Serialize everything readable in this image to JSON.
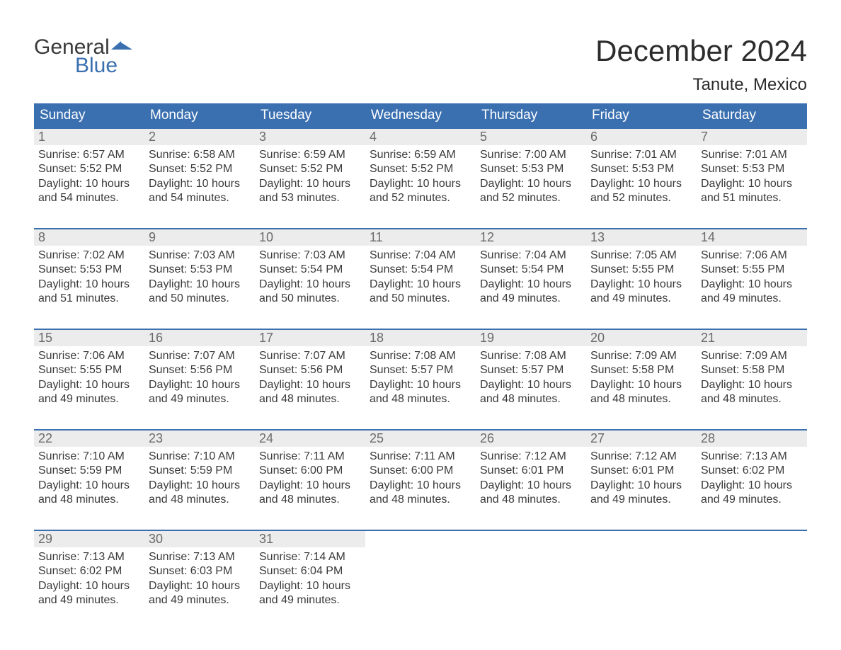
{
  "logo": {
    "text1": "General",
    "text2": "Blue",
    "flag_color": "#3a6fb0"
  },
  "title": "December 2024",
  "location": "Tanute, Mexico",
  "colors": {
    "header_bg": "#3a6fb0",
    "header_text": "#ffffff",
    "daynum_bg": "#ececec",
    "daynum_text": "#6a6a6a",
    "body_text": "#3a3a3a",
    "week_border": "#3a6fb0",
    "page_bg": "#ffffff"
  },
  "typography": {
    "title_fontsize": 42,
    "location_fontsize": 24,
    "header_fontsize": 19,
    "daynum_fontsize": 18,
    "body_fontsize": 16,
    "font_family": "Arial"
  },
  "layout": {
    "columns": 7,
    "rows": 5
  },
  "day_headers": [
    "Sunday",
    "Monday",
    "Tuesday",
    "Wednesday",
    "Thursday",
    "Friday",
    "Saturday"
  ],
  "weeks": [
    [
      {
        "n": "1",
        "sunrise": "Sunrise: 6:57 AM",
        "sunset": "Sunset: 5:52 PM",
        "d1": "Daylight: 10 hours",
        "d2": "and 54 minutes."
      },
      {
        "n": "2",
        "sunrise": "Sunrise: 6:58 AM",
        "sunset": "Sunset: 5:52 PM",
        "d1": "Daylight: 10 hours",
        "d2": "and 54 minutes."
      },
      {
        "n": "3",
        "sunrise": "Sunrise: 6:59 AM",
        "sunset": "Sunset: 5:52 PM",
        "d1": "Daylight: 10 hours",
        "d2": "and 53 minutes."
      },
      {
        "n": "4",
        "sunrise": "Sunrise: 6:59 AM",
        "sunset": "Sunset: 5:52 PM",
        "d1": "Daylight: 10 hours",
        "d2": "and 52 minutes."
      },
      {
        "n": "5",
        "sunrise": "Sunrise: 7:00 AM",
        "sunset": "Sunset: 5:53 PM",
        "d1": "Daylight: 10 hours",
        "d2": "and 52 minutes."
      },
      {
        "n": "6",
        "sunrise": "Sunrise: 7:01 AM",
        "sunset": "Sunset: 5:53 PM",
        "d1": "Daylight: 10 hours",
        "d2": "and 52 minutes."
      },
      {
        "n": "7",
        "sunrise": "Sunrise: 7:01 AM",
        "sunset": "Sunset: 5:53 PM",
        "d1": "Daylight: 10 hours",
        "d2": "and 51 minutes."
      }
    ],
    [
      {
        "n": "8",
        "sunrise": "Sunrise: 7:02 AM",
        "sunset": "Sunset: 5:53 PM",
        "d1": "Daylight: 10 hours",
        "d2": "and 51 minutes."
      },
      {
        "n": "9",
        "sunrise": "Sunrise: 7:03 AM",
        "sunset": "Sunset: 5:53 PM",
        "d1": "Daylight: 10 hours",
        "d2": "and 50 minutes."
      },
      {
        "n": "10",
        "sunrise": "Sunrise: 7:03 AM",
        "sunset": "Sunset: 5:54 PM",
        "d1": "Daylight: 10 hours",
        "d2": "and 50 minutes."
      },
      {
        "n": "11",
        "sunrise": "Sunrise: 7:04 AM",
        "sunset": "Sunset: 5:54 PM",
        "d1": "Daylight: 10 hours",
        "d2": "and 50 minutes."
      },
      {
        "n": "12",
        "sunrise": "Sunrise: 7:04 AM",
        "sunset": "Sunset: 5:54 PM",
        "d1": "Daylight: 10 hours",
        "d2": "and 49 minutes."
      },
      {
        "n": "13",
        "sunrise": "Sunrise: 7:05 AM",
        "sunset": "Sunset: 5:55 PM",
        "d1": "Daylight: 10 hours",
        "d2": "and 49 minutes."
      },
      {
        "n": "14",
        "sunrise": "Sunrise: 7:06 AM",
        "sunset": "Sunset: 5:55 PM",
        "d1": "Daylight: 10 hours",
        "d2": "and 49 minutes."
      }
    ],
    [
      {
        "n": "15",
        "sunrise": "Sunrise: 7:06 AM",
        "sunset": "Sunset: 5:55 PM",
        "d1": "Daylight: 10 hours",
        "d2": "and 49 minutes."
      },
      {
        "n": "16",
        "sunrise": "Sunrise: 7:07 AM",
        "sunset": "Sunset: 5:56 PM",
        "d1": "Daylight: 10 hours",
        "d2": "and 49 minutes."
      },
      {
        "n": "17",
        "sunrise": "Sunrise: 7:07 AM",
        "sunset": "Sunset: 5:56 PM",
        "d1": "Daylight: 10 hours",
        "d2": "and 48 minutes."
      },
      {
        "n": "18",
        "sunrise": "Sunrise: 7:08 AM",
        "sunset": "Sunset: 5:57 PM",
        "d1": "Daylight: 10 hours",
        "d2": "and 48 minutes."
      },
      {
        "n": "19",
        "sunrise": "Sunrise: 7:08 AM",
        "sunset": "Sunset: 5:57 PM",
        "d1": "Daylight: 10 hours",
        "d2": "and 48 minutes."
      },
      {
        "n": "20",
        "sunrise": "Sunrise: 7:09 AM",
        "sunset": "Sunset: 5:58 PM",
        "d1": "Daylight: 10 hours",
        "d2": "and 48 minutes."
      },
      {
        "n": "21",
        "sunrise": "Sunrise: 7:09 AM",
        "sunset": "Sunset: 5:58 PM",
        "d1": "Daylight: 10 hours",
        "d2": "and 48 minutes."
      }
    ],
    [
      {
        "n": "22",
        "sunrise": "Sunrise: 7:10 AM",
        "sunset": "Sunset: 5:59 PM",
        "d1": "Daylight: 10 hours",
        "d2": "and 48 minutes."
      },
      {
        "n": "23",
        "sunrise": "Sunrise: 7:10 AM",
        "sunset": "Sunset: 5:59 PM",
        "d1": "Daylight: 10 hours",
        "d2": "and 48 minutes."
      },
      {
        "n": "24",
        "sunrise": "Sunrise: 7:11 AM",
        "sunset": "Sunset: 6:00 PM",
        "d1": "Daylight: 10 hours",
        "d2": "and 48 minutes."
      },
      {
        "n": "25",
        "sunrise": "Sunrise: 7:11 AM",
        "sunset": "Sunset: 6:00 PM",
        "d1": "Daylight: 10 hours",
        "d2": "and 48 minutes."
      },
      {
        "n": "26",
        "sunrise": "Sunrise: 7:12 AM",
        "sunset": "Sunset: 6:01 PM",
        "d1": "Daylight: 10 hours",
        "d2": "and 48 minutes."
      },
      {
        "n": "27",
        "sunrise": "Sunrise: 7:12 AM",
        "sunset": "Sunset: 6:01 PM",
        "d1": "Daylight: 10 hours",
        "d2": "and 49 minutes."
      },
      {
        "n": "28",
        "sunrise": "Sunrise: 7:13 AM",
        "sunset": "Sunset: 6:02 PM",
        "d1": "Daylight: 10 hours",
        "d2": "and 49 minutes."
      }
    ],
    [
      {
        "n": "29",
        "sunrise": "Sunrise: 7:13 AM",
        "sunset": "Sunset: 6:02 PM",
        "d1": "Daylight: 10 hours",
        "d2": "and 49 minutes."
      },
      {
        "n": "30",
        "sunrise": "Sunrise: 7:13 AM",
        "sunset": "Sunset: 6:03 PM",
        "d1": "Daylight: 10 hours",
        "d2": "and 49 minutes."
      },
      {
        "n": "31",
        "sunrise": "Sunrise: 7:14 AM",
        "sunset": "Sunset: 6:04 PM",
        "d1": "Daylight: 10 hours",
        "d2": "and 49 minutes."
      },
      null,
      null,
      null,
      null
    ]
  ]
}
